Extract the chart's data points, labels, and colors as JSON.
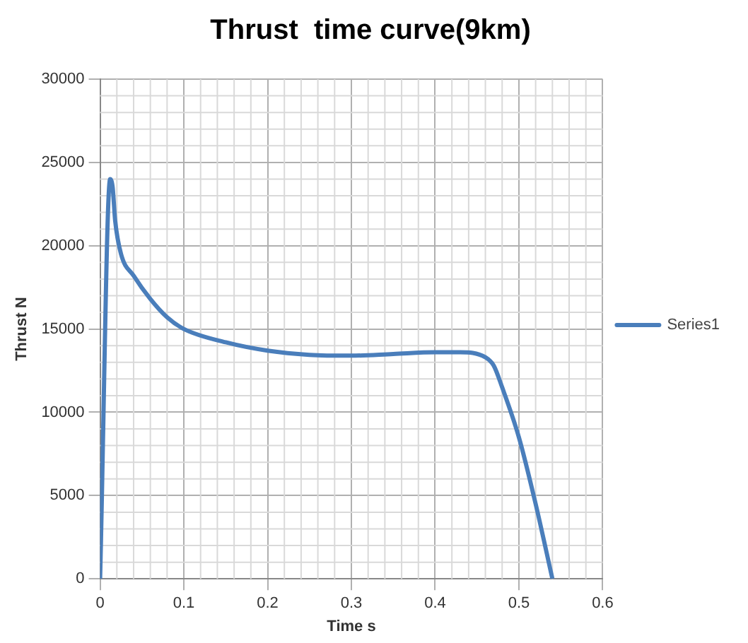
{
  "chart_data": {
    "type": "line",
    "title": "Thrust  time curve(9km)",
    "xlabel": "Time s",
    "ylabel": "Thrust N",
    "xlim": [
      0,
      0.6
    ],
    "xticks": [
      0,
      0.1,
      0.2,
      0.3,
      0.4,
      0.5,
      0.6
    ],
    "ylim": [
      0,
      30000
    ],
    "yticks": [
      0,
      5000,
      10000,
      15000,
      20000,
      25000,
      30000
    ],
    "grid": true,
    "legend": "right",
    "marker": "none",
    "series": [
      {
        "name": "Series1",
        "color": "#4a7ebb",
        "x": [
          0,
          0.012,
          0.015,
          0.018,
          0.025,
          0.04,
          0.06,
          0.08,
          0.1,
          0.15,
          0.2,
          0.25,
          0.3,
          0.35,
          0.4,
          0.43,
          0.46,
          0.47,
          0.48,
          0.5,
          0.52,
          0.54
        ],
        "values": [
          0,
          24000,
          23500,
          21500,
          19500,
          18200,
          16800,
          15700,
          15000,
          14200,
          13700,
          13450,
          13400,
          13500,
          13600,
          13600,
          13300,
          12800,
          11500,
          8500,
          4500,
          0
        ]
      }
    ]
  }
}
